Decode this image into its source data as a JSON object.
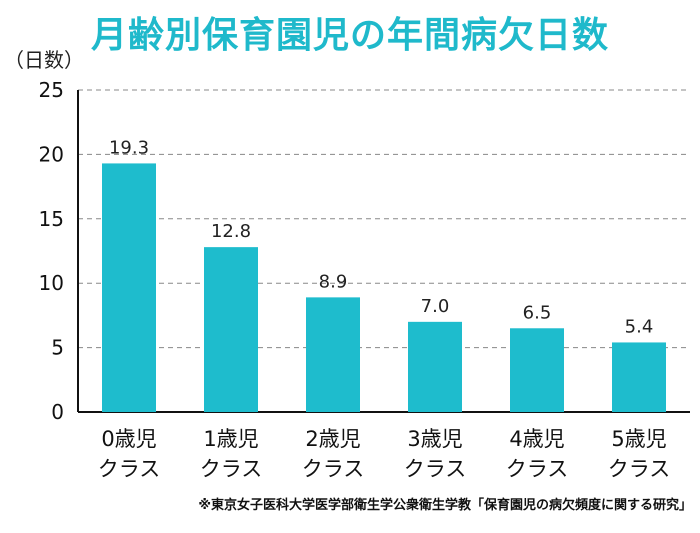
{
  "title": "月齢別保育園児の年間病欠日数",
  "unit_label": "（日数）",
  "source": "※東京女子医科大学医学部衛生学公衆衛生学教「保育園児の病欠頻度に関する研究」",
  "colors": {
    "title": "#1fb9cb",
    "bar": "#1ebccd",
    "axis": "#111111",
    "grid": "#888888"
  },
  "chart_data": {
    "type": "bar",
    "categories": [
      "0歳児 クラス",
      "1歳児 クラス",
      "2歳児 クラス",
      "3歳児 クラス",
      "4歳児 クラス",
      "5歳児 クラス"
    ],
    "category_lines": [
      [
        "0歳児",
        "クラス"
      ],
      [
        "1歳児",
        "クラス"
      ],
      [
        "2歳児",
        "クラス"
      ],
      [
        "3歳児",
        "クラス"
      ],
      [
        "4歳児",
        "クラス"
      ],
      [
        "5歳児",
        "クラス"
      ]
    ],
    "values": [
      19.3,
      12.8,
      8.9,
      7.0,
      6.5,
      5.4
    ],
    "value_labels": [
      "19.3",
      "12.8",
      "8.9",
      "7.0",
      "6.5",
      "5.4"
    ],
    "title": "月齢別保育園児の年間病欠日数",
    "xlabel": "",
    "ylabel": "（日数）",
    "ylim": [
      0,
      25
    ],
    "yticks": [
      0,
      5,
      10,
      15,
      20,
      25
    ],
    "grid": true
  }
}
